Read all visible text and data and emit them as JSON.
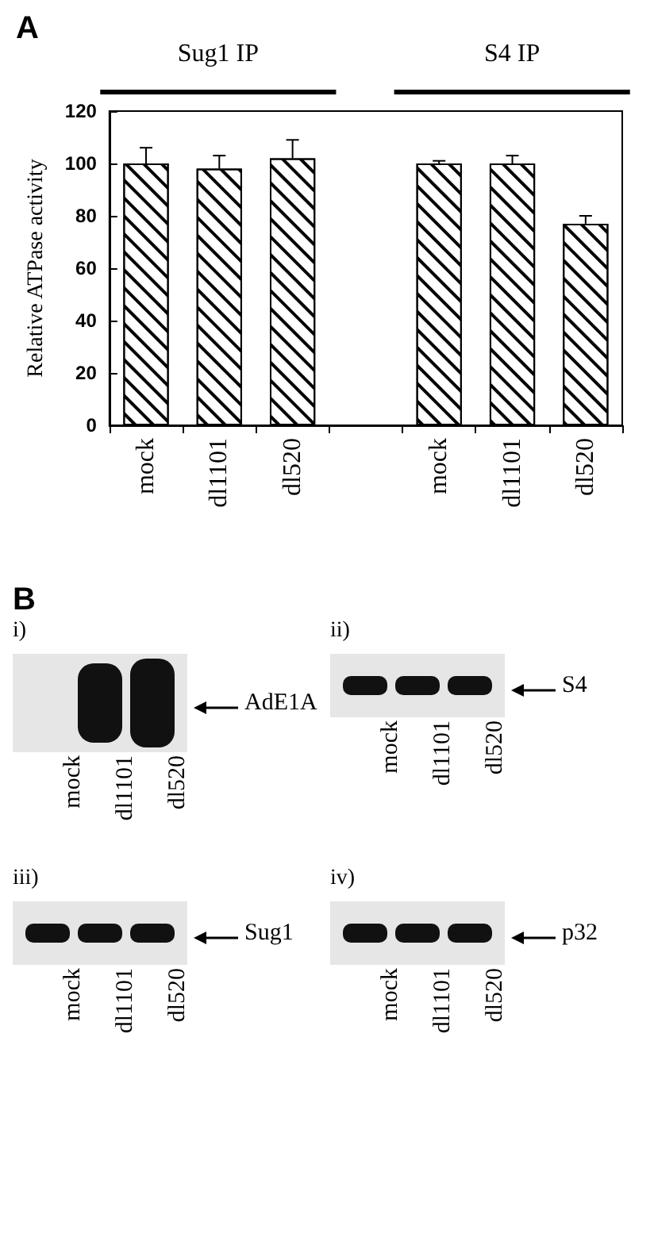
{
  "chart_data": [
    {
      "type": "bar",
      "ylabel": "Relative ATPase activity",
      "categories": [
        "mock",
        "dl1101",
        "dl520",
        null,
        "mock",
        "dl1101",
        "dl520"
      ],
      "values": [
        100,
        98,
        102,
        null,
        100,
        100,
        77
      ],
      "errors": [
        [
          100,
          106
        ],
        [
          98,
          103
        ],
        [
          102,
          109
        ],
        null,
        [
          100,
          101
        ],
        [
          100,
          103
        ],
        [
          77,
          80
        ]
      ],
      "color": "#ffffff",
      "ylim": [
        0,
        120
      ],
      "yticks": [
        0,
        20,
        40,
        60,
        80,
        100,
        120
      ],
      "grid": false,
      "annotations": [
        "A",
        "Sug1 IP",
        "S4 IP"
      ]
    },
    {
      "type": "other",
      "title": "B",
      "annotations": [
        "i)",
        "AdE1A",
        "mock",
        "dl1101",
        "dl520",
        "ii)",
        "S4",
        "mock",
        "dl1101",
        "dl520",
        "iii)",
        "Sug1",
        "mock",
        "dl1101",
        "dl520",
        "iv)",
        "p32",
        "mock",
        "dl1101",
        "dl520"
      ]
    }
  ]
}
